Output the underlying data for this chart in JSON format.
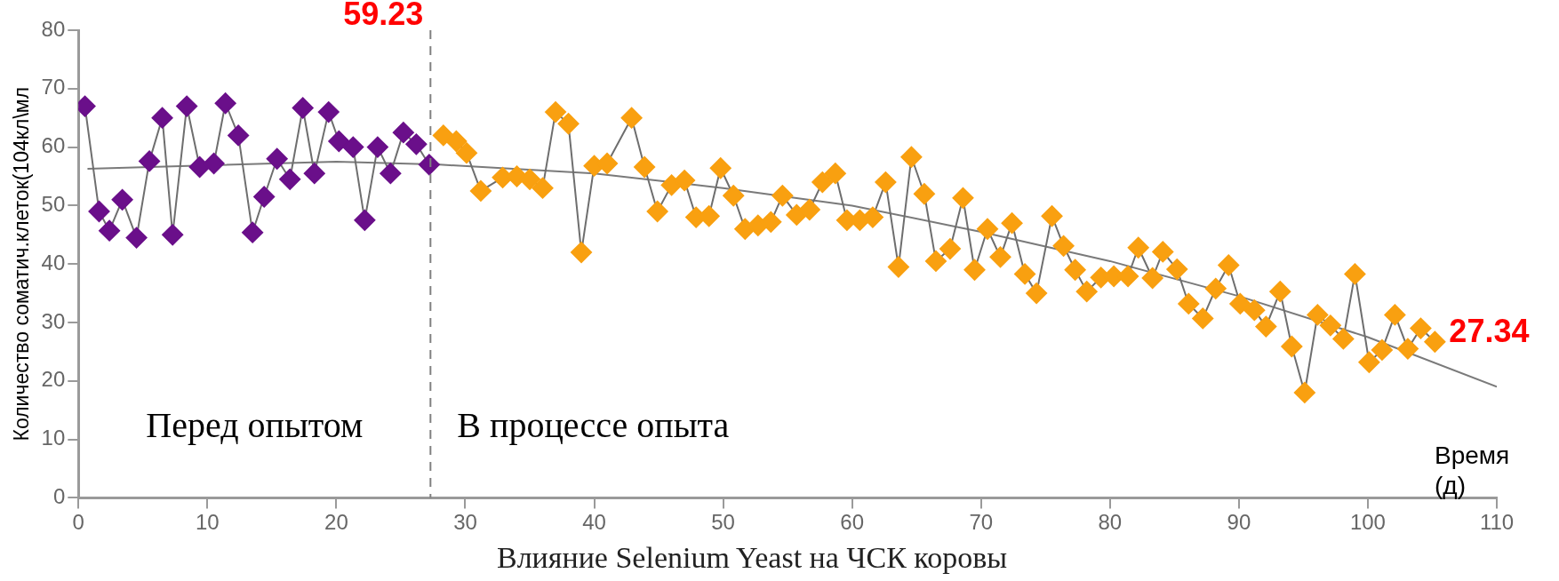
{
  "chart_data": {
    "type": "line",
    "title": "Влияние Selenium Yeast на ЧСК коровы",
    "xlabel": "Время (д)",
    "ylabel": "Количество соматич.клеток(104кл\\мл",
    "xlim": [
      0,
      110
    ],
    "xticks": [
      0,
      10,
      20,
      30,
      40,
      50,
      60,
      70,
      80,
      90,
      100,
      110
    ],
    "ylim": [
      0,
      80
    ],
    "yticks": [
      0,
      10,
      20,
      30,
      40,
      50,
      60,
      70,
      80
    ],
    "grid": false,
    "legend": false,
    "marker": "diamond",
    "line_style": "solid",
    "series": [
      {
        "color": "#6a0f8a",
        "x": [
          0.5,
          1.6,
          2.4,
          3.4,
          4.5,
          5.5,
          6.5,
          7.3,
          8.4,
          9.4,
          10.5,
          11.4,
          12.4,
          13.5,
          14.4,
          15.4,
          16.4,
          17.4,
          18.3,
          19.4,
          20.2,
          21.3,
          22.2,
          23.2,
          24.2,
          25.2,
          26.2,
          27.2
        ],
        "values": [
          67,
          49,
          45.7,
          51,
          44.5,
          57.6,
          65,
          45,
          67,
          56.6,
          57.2,
          67.5,
          62,
          45.4,
          51.5,
          58,
          54.5,
          66.7,
          55.5,
          66,
          61,
          60,
          47.5,
          60,
          55.5,
          62.5,
          60.5,
          57
        ]
      },
      {
        "color": "#f9a010",
        "x": [
          28.3,
          29.3,
          30.1,
          31.2,
          32.9,
          34,
          35,
          36,
          37,
          38,
          39,
          40,
          41,
          42.9,
          43.9,
          44.9,
          46,
          47,
          47.9,
          48.9,
          49.8,
          50.8,
          51.7,
          52.7,
          53.7,
          54.6,
          55.7,
          56.7,
          57.7,
          58.7,
          59.6,
          60.6,
          61.6,
          62.6,
          63.6,
          64.6,
          65.6,
          66.5,
          67.6,
          68.6,
          69.5,
          70.5,
          71.5,
          72.4,
          73.4,
          74.3,
          75.5,
          76.4,
          77.3,
          78.2,
          79.3,
          80.3,
          81.4,
          82.2,
          83.3,
          84.1,
          85.2,
          86.1,
          87.2,
          88.2,
          89.2,
          90.1,
          91.2,
          92.1,
          93.2,
          94.1,
          95.1,
          96.1,
          97.1,
          98.1,
          99,
          100.1,
          101.1,
          102.1,
          103.1,
          104.1,
          105.2
        ],
        "values": [
          62,
          61,
          59,
          52.5,
          54.8,
          55,
          54.5,
          53,
          66,
          64,
          42,
          56.8,
          57.2,
          65,
          56.6,
          49,
          53.5,
          54.3,
          48,
          48.2,
          56.4,
          51.7,
          46,
          46.6,
          47.2,
          51.7,
          48.4,
          49.3,
          54,
          55.5,
          47.5,
          47.5,
          48,
          54,
          39.5,
          58.3,
          52,
          40.5,
          42.6,
          51.3,
          39,
          46,
          41.2,
          47,
          38.3,
          35,
          48.2,
          43.1,
          39,
          35.3,
          37.7,
          37.9,
          37.9,
          42.8,
          37.6,
          42.1,
          39.1,
          33.2,
          30.7,
          35.8,
          39.8,
          33.2,
          32.1,
          29.3,
          35.3,
          25.9,
          18,
          31.3,
          29.5,
          27.2,
          38.3,
          23.2,
          25.3,
          31.3,
          25.5,
          29,
          26.7
        ]
      },
      {
        "type": "line",
        "marker": "none",
        "color": "#7a7a7a",
        "x": [
          0.7,
          20,
          28,
          40,
          50,
          60,
          70,
          80,
          90,
          100,
          110
        ],
        "values": [
          56.3,
          57.5,
          57,
          55.5,
          53,
          50,
          45.5,
          40.5,
          34.5,
          27.5,
          19
        ]
      }
    ],
    "ref_lines": [
      {
        "axis": "x",
        "value": 27.3,
        "color": "#808080",
        "line_style": "dashed"
      }
    ],
    "annotations": [
      "Перед опытом",
      "В процессе опыта",
      {
        "text": "59.23",
        "x": 27.3,
        "y": 80
      },
      {
        "text": "27.34",
        "x": 105.2,
        "y": 26.7
      }
    ]
  }
}
